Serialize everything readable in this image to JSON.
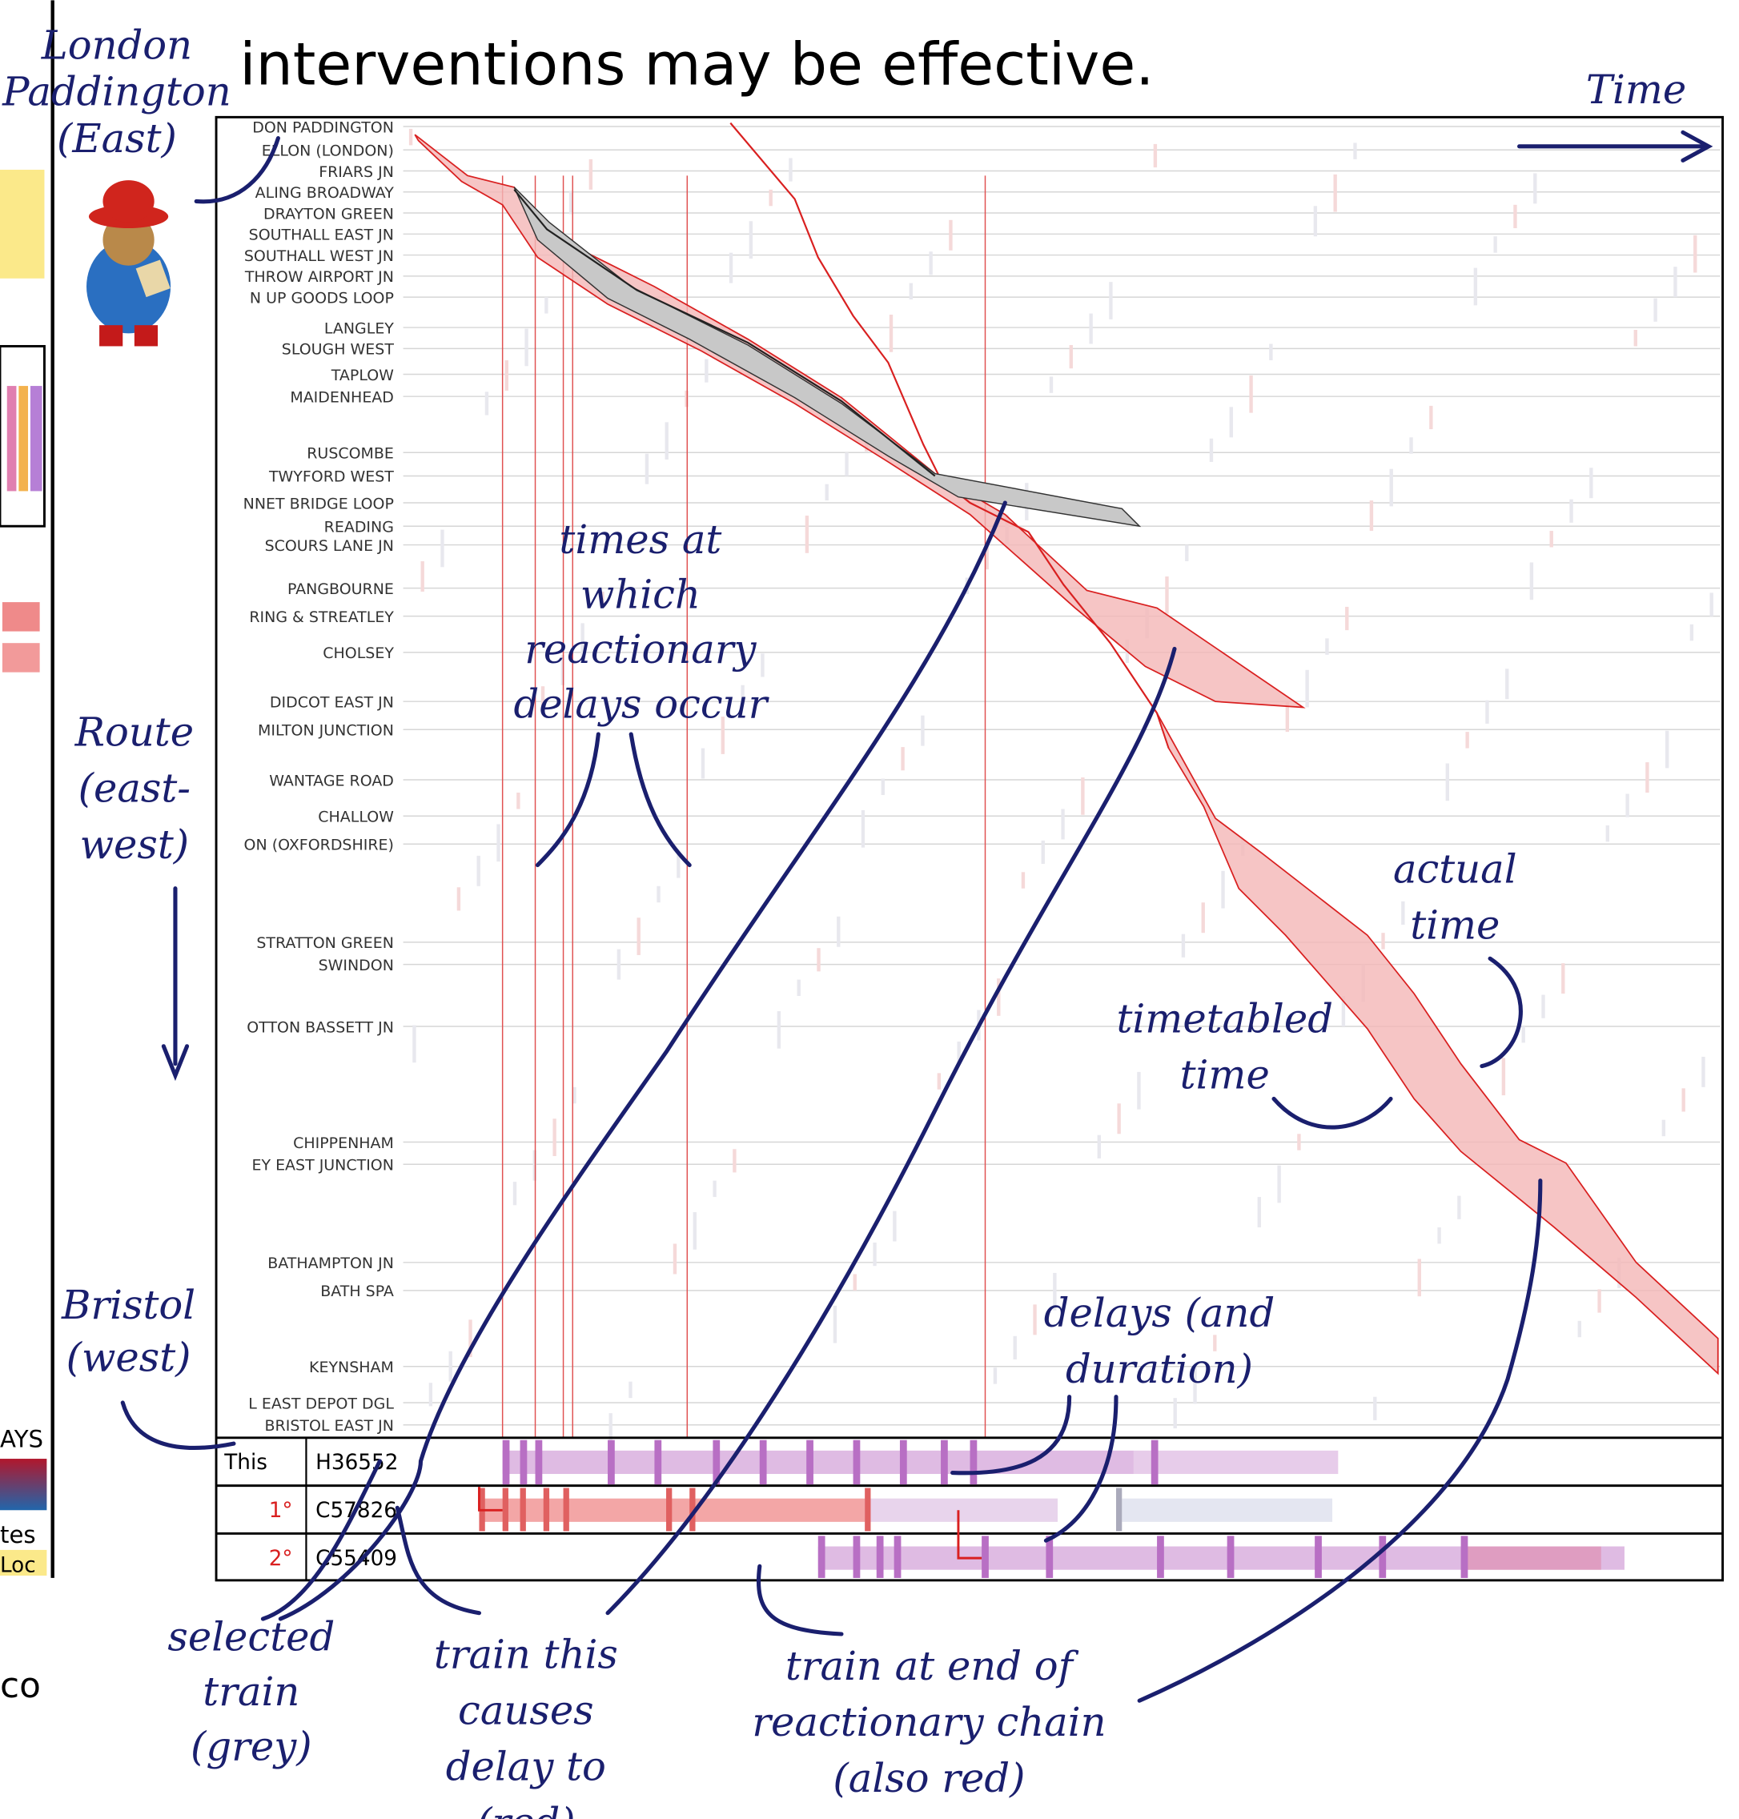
{
  "title": "interventions may be effective.",
  "annotations": {
    "origin": [
      "London",
      "Paddington",
      "(East)"
    ],
    "time": "Time",
    "route": [
      "Route",
      "(east-",
      "west)"
    ],
    "destination": [
      "Bristol",
      "(west)"
    ],
    "reactionary_times": [
      "times at",
      "which",
      "reactionary",
      "delays occur"
    ],
    "actual_time": [
      "actual",
      "time"
    ],
    "timetabled_time": [
      "timetabled",
      "time"
    ],
    "delays": [
      "delays (and",
      "duration)"
    ],
    "selected_train": [
      "selected",
      "train",
      "(grey)"
    ],
    "caused_train": [
      "train this",
      "causes",
      "delay to",
      "(red)"
    ],
    "chain_end": [
      "train at end of",
      "reactionary chain",
      "(also red)"
    ]
  },
  "stations": [
    "DON PADDINGTON",
    "ELLON (LONDON)",
    "FRIARS JN",
    "ALING BROADWAY",
    "DRAYTON GREEN",
    "SOUTHALL EAST JN",
    "SOUTHALL WEST JN",
    "THROW AIRPORT JN",
    "N UP GOODS LOOP",
    "LANGLEY",
    "SLOUGH WEST",
    "TAPLOW",
    "MAIDENHEAD",
    "RUSCOMBE",
    "TWYFORD WEST",
    "NNET BRIDGE LOOP",
    "READING",
    "SCOURS LANE JN",
    "PANGBOURNE",
    "RING & STREATLEY",
    "CHOLSEY",
    "DIDCOT EAST JN",
    "MILTON JUNCTION",
    "WANTAGE ROAD",
    "CHALLOW",
    "ON (OXFORDSHIRE)",
    "STRATTON GREEN",
    "SWINDON",
    "OTTON BASSETT JN",
    "CHIPPENHAM",
    "EY EAST JUNCTION",
    "BATHAMPTON JN",
    "BATH SPA",
    "KEYNSHAM",
    "L EAST DEPOT DGL",
    "BRISTOL EAST JN"
  ],
  "train_rows": [
    {
      "rank": "This",
      "id": "H36552"
    },
    {
      "rank": "1°",
      "id": "C57826"
    },
    {
      "rank": "2°",
      "id": "C55409"
    }
  ],
  "side_panel": [
    "AYS",
    "tes",
    "Loc",
    "co"
  ]
}
